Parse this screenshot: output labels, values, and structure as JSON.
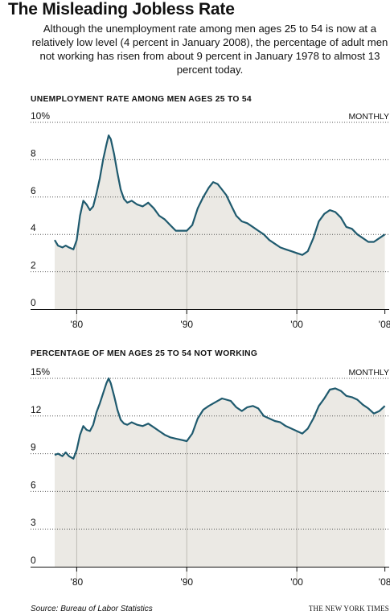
{
  "title": "The Misleading Jobless Rate",
  "description": "Although the unemployment rate among men ages 25 to 54 is now at a relatively low level (4 percent in January 2008), the percentage of adult men not working has risen from about 9 percent in January 1978 to almost 13 percent today.",
  "source": "Source: Bureau of Labor Statistics",
  "credit": "THE NEW YORK TIMES",
  "colors": {
    "line": "#1f5a6e",
    "area": "#ebe9e4",
    "grid": "#555555"
  },
  "chart_data": [
    {
      "type": "area",
      "title": "UNEMPLOYMENT RATE AMONG MEN AGES 25 TO 54",
      "frequency_label": "MONTHLY",
      "y_unit": "%",
      "ylim": [
        0,
        10
      ],
      "yticks": [
        0,
        2,
        4,
        6,
        8,
        10
      ],
      "ytick_labels": [
        "0",
        "2",
        "4",
        "6",
        "8",
        "10"
      ],
      "xlim": [
        1978.0,
        2008.1
      ],
      "xticks": [
        1980,
        1990,
        2000,
        2008
      ],
      "xtick_labels": [
        "'80",
        "'90",
        "'00",
        "'08"
      ],
      "grid": "dotted horizontal",
      "x": [
        1978.0,
        1978.3,
        1978.7,
        1979.0,
        1979.3,
        1979.7,
        1980.0,
        1980.3,
        1980.6,
        1980.9,
        1981.2,
        1981.5,
        1981.8,
        1982.1,
        1982.4,
        1982.7,
        1982.9,
        1983.1,
        1983.4,
        1983.7,
        1984.0,
        1984.3,
        1984.6,
        1985.0,
        1985.5,
        1986.0,
        1986.5,
        1987.0,
        1987.5,
        1988.0,
        1988.5,
        1989.0,
        1989.5,
        1990.0,
        1990.5,
        1991.0,
        1991.5,
        1992.0,
        1992.4,
        1992.8,
        1993.2,
        1993.6,
        1994.0,
        1994.5,
        1995.0,
        1995.5,
        1996.0,
        1996.5,
        1997.0,
        1997.5,
        1998.0,
        1998.5,
        1999.0,
        1999.5,
        2000.0,
        2000.5,
        2001.0,
        2001.5,
        2002.0,
        2002.5,
        2003.0,
        2003.5,
        2004.0,
        2004.5,
        2005.0,
        2005.5,
        2006.0,
        2006.5,
        2007.0,
        2007.5,
        2008.0
      ],
      "y": [
        3.7,
        3.4,
        3.3,
        3.4,
        3.3,
        3.2,
        3.7,
        5.0,
        5.8,
        5.6,
        5.3,
        5.5,
        6.2,
        7.0,
        8.0,
        8.8,
        9.3,
        9.1,
        8.3,
        7.3,
        6.4,
        5.9,
        5.7,
        5.8,
        5.6,
        5.5,
        5.7,
        5.4,
        5.0,
        4.8,
        4.5,
        4.2,
        4.2,
        4.2,
        4.5,
        5.4,
        6.0,
        6.5,
        6.8,
        6.7,
        6.4,
        6.1,
        5.6,
        5.0,
        4.7,
        4.6,
        4.4,
        4.2,
        4.0,
        3.7,
        3.5,
        3.3,
        3.2,
        3.1,
        3.0,
        2.9,
        3.1,
        3.8,
        4.7,
        5.1,
        5.3,
        5.2,
        4.9,
        4.4,
        4.3,
        4.0,
        3.8,
        3.6,
        3.6,
        3.8,
        4.0
      ]
    },
    {
      "type": "area",
      "title": "PERCENTAGE OF MEN AGES 25 TO 54 NOT WORKING",
      "frequency_label": "MONTHLY",
      "y_unit": "%",
      "ylim": [
        0,
        15
      ],
      "yticks": [
        0,
        3,
        6,
        9,
        12,
        15
      ],
      "ytick_labels": [
        "0",
        "3",
        "6",
        "9",
        "12",
        "15"
      ],
      "xlim": [
        1978.0,
        2008.1
      ],
      "xticks": [
        1980,
        1990,
        2000,
        2008
      ],
      "xtick_labels": [
        "'80",
        "'90",
        "'00",
        "'08"
      ],
      "grid": "dotted horizontal",
      "x": [
        1978.0,
        1978.3,
        1978.7,
        1979.0,
        1979.3,
        1979.7,
        1980.0,
        1980.3,
        1980.6,
        1980.9,
        1981.2,
        1981.5,
        1981.8,
        1982.1,
        1982.4,
        1982.7,
        1982.9,
        1983.1,
        1983.4,
        1983.7,
        1984.0,
        1984.3,
        1984.6,
        1985.0,
        1985.5,
        1986.0,
        1986.5,
        1987.0,
        1987.5,
        1988.0,
        1988.5,
        1989.0,
        1989.5,
        1990.0,
        1990.5,
        1991.0,
        1991.5,
        1992.0,
        1992.4,
        1992.8,
        1993.2,
        1993.6,
        1994.0,
        1994.5,
        1995.0,
        1995.5,
        1996.0,
        1996.5,
        1997.0,
        1997.5,
        1998.0,
        1998.5,
        1999.0,
        1999.5,
        2000.0,
        2000.5,
        2001.0,
        2001.5,
        2002.0,
        2002.5,
        2003.0,
        2003.5,
        2004.0,
        2004.5,
        2005.0,
        2005.5,
        2006.0,
        2006.5,
        2007.0,
        2007.5,
        2008.0
      ],
      "y": [
        8.9,
        9.0,
        8.8,
        9.1,
        8.8,
        8.6,
        9.3,
        10.5,
        11.2,
        10.9,
        10.8,
        11.3,
        12.3,
        13.0,
        13.8,
        14.6,
        15.0,
        14.6,
        13.6,
        12.5,
        11.7,
        11.4,
        11.3,
        11.5,
        11.3,
        11.2,
        11.4,
        11.1,
        10.8,
        10.5,
        10.3,
        10.2,
        10.1,
        10.0,
        10.6,
        11.8,
        12.5,
        12.8,
        13.0,
        13.2,
        13.4,
        13.3,
        13.2,
        12.7,
        12.4,
        12.7,
        12.8,
        12.6,
        12.0,
        11.8,
        11.6,
        11.5,
        11.2,
        11.0,
        10.8,
        10.6,
        11.0,
        11.8,
        12.8,
        13.4,
        14.1,
        14.2,
        14.0,
        13.6,
        13.5,
        13.3,
        12.9,
        12.6,
        12.2,
        12.4,
        12.8
      ]
    }
  ]
}
